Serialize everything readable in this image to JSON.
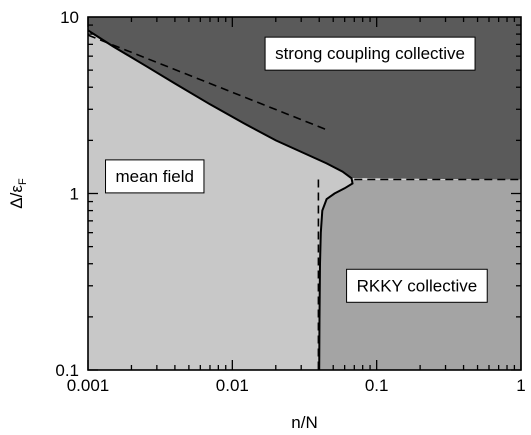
{
  "chart_data": {
    "type": "phase-diagram",
    "xlabel": "n/N",
    "ylabel_main": "Δ/ε",
    "ylabel_sub": "F",
    "xscale": "log",
    "yscale": "log",
    "xlim": [
      0.001,
      1
    ],
    "ylim": [
      0.1,
      10
    ],
    "grid": false,
    "x_ticks": [
      {
        "value": 0.001,
        "label": "0.001"
      },
      {
        "value": 0.01,
        "label": "0.01"
      },
      {
        "value": 0.1,
        "label": "0.1"
      },
      {
        "value": 1,
        "label": "1"
      }
    ],
    "y_ticks": [
      {
        "value": 0.1,
        "label": "0.1"
      },
      {
        "value": 1,
        "label": "1"
      },
      {
        "value": 10,
        "label": "10"
      }
    ],
    "regions": [
      {
        "name": "mean field",
        "label_at": {
          "x": 0.0029,
          "y": 1.25
        },
        "color": "#c8c8c8"
      },
      {
        "name": "strong coupling collective",
        "label_at": {
          "x": 0.09,
          "y": 6.2
        },
        "color": "#5a5a5a"
      },
      {
        "name": "RKKY collective",
        "label_at": {
          "x": 0.19,
          "y": 0.3
        },
        "color": "#a4a4a4"
      }
    ],
    "solid_boundary": [
      {
        "x": 0.001,
        "y": 8.4
      },
      {
        "x": 0.0015,
        "y": 6.8
      },
      {
        "x": 0.0025,
        "y": 5.3
      },
      {
        "x": 0.004,
        "y": 4.2
      },
      {
        "x": 0.007,
        "y": 3.2
      },
      {
        "x": 0.012,
        "y": 2.5
      },
      {
        "x": 0.02,
        "y": 2.0
      },
      {
        "x": 0.03,
        "y": 1.72
      },
      {
        "x": 0.045,
        "y": 1.48
      },
      {
        "x": 0.058,
        "y": 1.33
      },
      {
        "x": 0.067,
        "y": 1.22
      },
      {
        "x": 0.068,
        "y": 1.14
      },
      {
        "x": 0.06,
        "y": 1.07
      },
      {
        "x": 0.051,
        "y": 1.0
      },
      {
        "x": 0.045,
        "y": 0.93
      },
      {
        "x": 0.042,
        "y": 0.8
      },
      {
        "x": 0.041,
        "y": 0.6
      },
      {
        "x": 0.0405,
        "y": 0.4
      },
      {
        "x": 0.0402,
        "y": 0.2
      },
      {
        "x": 0.04,
        "y": 0.1
      }
    ],
    "dashed_lines": [
      {
        "name": "strong coupling asymptote",
        "points": [
          {
            "x": 0.001,
            "y": 7.9
          },
          {
            "x": 0.045,
            "y": 2.3
          }
        ]
      },
      {
        "name": "RKKY crossover",
        "points": [
          {
            "x": 0.07,
            "y": 1.2
          },
          {
            "x": 1,
            "y": 1.2
          }
        ]
      },
      {
        "name": "mean-field density bound",
        "points": [
          {
            "x": 0.0395,
            "y": 1.2
          },
          {
            "x": 0.0395,
            "y": 0.1
          }
        ]
      }
    ]
  }
}
